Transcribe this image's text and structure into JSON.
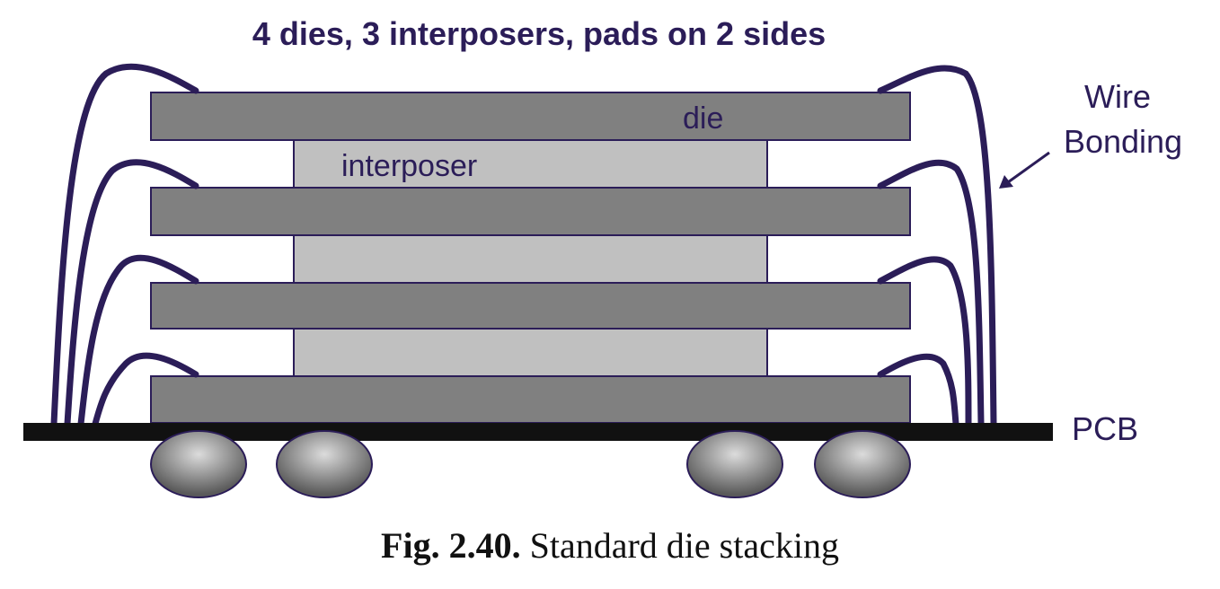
{
  "title": "4 dies, 3 interposers, pads on 2 sides",
  "labels": {
    "die": "die",
    "interposer": "interposer",
    "wire_line1": "Wire",
    "wire_line2": "Bonding",
    "pcb": "PCB"
  },
  "caption": {
    "number": "Fig. 2.40.",
    "text": "Standard die stacking"
  },
  "colors": {
    "die": "#808080",
    "interposer": "#c0c0c0",
    "outline": "#2b1d58",
    "wire": "#2b1d58",
    "pcb": "#111111",
    "ball_light": "#dcdcdc",
    "ball_dark": "#5a5a5a"
  }
}
